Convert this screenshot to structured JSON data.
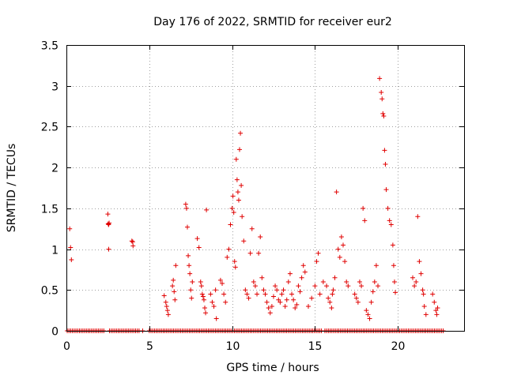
{
  "chart_data": {
    "type": "scatter",
    "title": "Day 176 of 2022, SRMTID for receiver eur2",
    "xlabel": "GPS time / hours",
    "ylabel": "SRMTID / TECUs",
    "xlim": [
      0,
      24
    ],
    "ylim": [
      0,
      3.5
    ],
    "xticks": [
      0,
      5,
      10,
      15,
      20
    ],
    "xtick_labels": [
      "0",
      "5",
      "10",
      "15",
      "20"
    ],
    "yticks": [
      0,
      0.5,
      1,
      1.5,
      2,
      2.5,
      3,
      3.5
    ],
    "ytick_labels": [
      "0",
      "0.5",
      "1",
      "1.5",
      "2",
      "2.5",
      "3",
      "3.5"
    ],
    "grid": true,
    "marker": "+",
    "marker_color": "#e00000",
    "zero_line_segments": [
      [
        0.05,
        2.3
      ],
      [
        2.6,
        4.4
      ],
      [
        4.6,
        4.7
      ],
      [
        5.0,
        15.4
      ],
      [
        15.6,
        22.8
      ]
    ],
    "series": [
      {
        "name": "SRMTID",
        "x": [
          0.2,
          0.25,
          0.3,
          2.5,
          2.52,
          2.55,
          2.55,
          2.58,
          3.95,
          4.0,
          4.02,
          5.9,
          6.0,
          6.05,
          6.1,
          6.15,
          6.4,
          6.45,
          6.5,
          6.55,
          6.6,
          7.2,
          7.25,
          7.3,
          7.35,
          7.4,
          7.45,
          7.5,
          7.55,
          7.6,
          7.9,
          8.0,
          8.1,
          8.15,
          8.2,
          8.25,
          8.3,
          8.35,
          8.4,
          8.45,
          8.7,
          8.8,
          8.9,
          9.0,
          9.05,
          9.3,
          9.4,
          9.5,
          9.6,
          9.7,
          9.8,
          9.9,
          10.0,
          10.05,
          10.1,
          10.15,
          10.2,
          10.25,
          10.3,
          10.35,
          10.4,
          10.45,
          10.5,
          10.55,
          10.6,
          10.7,
          10.8,
          10.9,
          11.0,
          11.1,
          11.2,
          11.3,
          11.4,
          11.5,
          11.6,
          11.7,
          11.8,
          11.9,
          12.0,
          12.1,
          12.2,
          12.3,
          12.4,
          12.5,
          12.6,
          12.7,
          12.8,
          12.9,
          13.0,
          13.1,
          13.2,
          13.3,
          13.4,
          13.5,
          13.6,
          13.7,
          13.8,
          13.9,
          14.0,
          14.1,
          14.2,
          14.3,
          14.4,
          14.6,
          14.8,
          15.0,
          15.1,
          15.2,
          15.3,
          15.5,
          15.7,
          15.8,
          15.9,
          16.0,
          16.05,
          16.1,
          16.2,
          16.3,
          16.4,
          16.5,
          16.6,
          16.7,
          16.8,
          16.9,
          17.0,
          17.4,
          17.5,
          17.6,
          17.7,
          17.8,
          17.9,
          18.0,
          18.1,
          18.2,
          18.3,
          18.4,
          18.5,
          18.6,
          18.7,
          18.8,
          18.9,
          19.0,
          19.05,
          19.1,
          19.15,
          19.2,
          19.25,
          19.3,
          19.4,
          19.5,
          19.6,
          19.7,
          19.75,
          19.8,
          19.85,
          20.9,
          21.0,
          21.1,
          21.2,
          21.3,
          21.4,
          21.5,
          21.55,
          21.6,
          21.7,
          22.1,
          22.2,
          22.3,
          22.35,
          22.4
        ],
        "y": [
          1.25,
          1.02,
          0.87,
          1.43,
          1.31,
          1.3,
          1.0,
          1.32,
          1.1,
          1.09,
          1.04,
          0.43,
          0.35,
          0.3,
          0.25,
          0.2,
          0.55,
          0.62,
          0.48,
          0.38,
          0.8,
          1.55,
          1.5,
          1.27,
          0.92,
          0.8,
          0.7,
          0.5,
          0.4,
          0.6,
          1.13,
          1.02,
          0.6,
          0.55,
          0.45,
          0.42,
          0.38,
          0.28,
          0.22,
          1.48,
          0.45,
          0.35,
          0.3,
          0.5,
          0.15,
          0.62,
          0.58,
          0.45,
          0.35,
          0.9,
          1.0,
          1.3,
          1.5,
          1.65,
          1.45,
          0.85,
          0.78,
          2.1,
          1.85,
          1.7,
          1.6,
          2.22,
          2.42,
          1.78,
          1.4,
          1.1,
          0.5,
          0.45,
          0.4,
          0.95,
          1.25,
          0.6,
          0.55,
          0.45,
          0.95,
          1.15,
          0.65,
          0.5,
          0.45,
          0.35,
          0.28,
          0.22,
          0.3,
          0.42,
          0.55,
          0.5,
          0.38,
          0.35,
          0.45,
          0.5,
          0.3,
          0.38,
          0.6,
          0.7,
          0.45,
          0.38,
          0.28,
          0.32,
          0.55,
          0.48,
          0.65,
          0.8,
          0.72,
          0.3,
          0.4,
          0.55,
          0.85,
          0.95,
          0.45,
          0.6,
          0.55,
          0.4,
          0.35,
          0.28,
          0.45,
          0.5,
          0.65,
          1.7,
          1.0,
          0.9,
          1.15,
          1.05,
          0.85,
          0.6,
          0.55,
          0.45,
          0.4,
          0.35,
          0.6,
          0.55,
          1.5,
          1.35,
          0.25,
          0.2,
          0.15,
          0.35,
          0.48,
          0.6,
          0.8,
          0.55,
          3.09,
          2.92,
          2.84,
          2.66,
          2.63,
          2.21,
          2.04,
          1.73,
          1.5,
          1.35,
          1.3,
          1.05,
          0.8,
          0.6,
          0.47,
          0.65,
          0.55,
          0.6,
          1.4,
          0.85,
          0.7,
          0.5,
          0.45,
          0.3,
          0.2,
          0.45,
          0.35,
          0.25,
          0.2,
          0.28
        ]
      }
    ]
  }
}
